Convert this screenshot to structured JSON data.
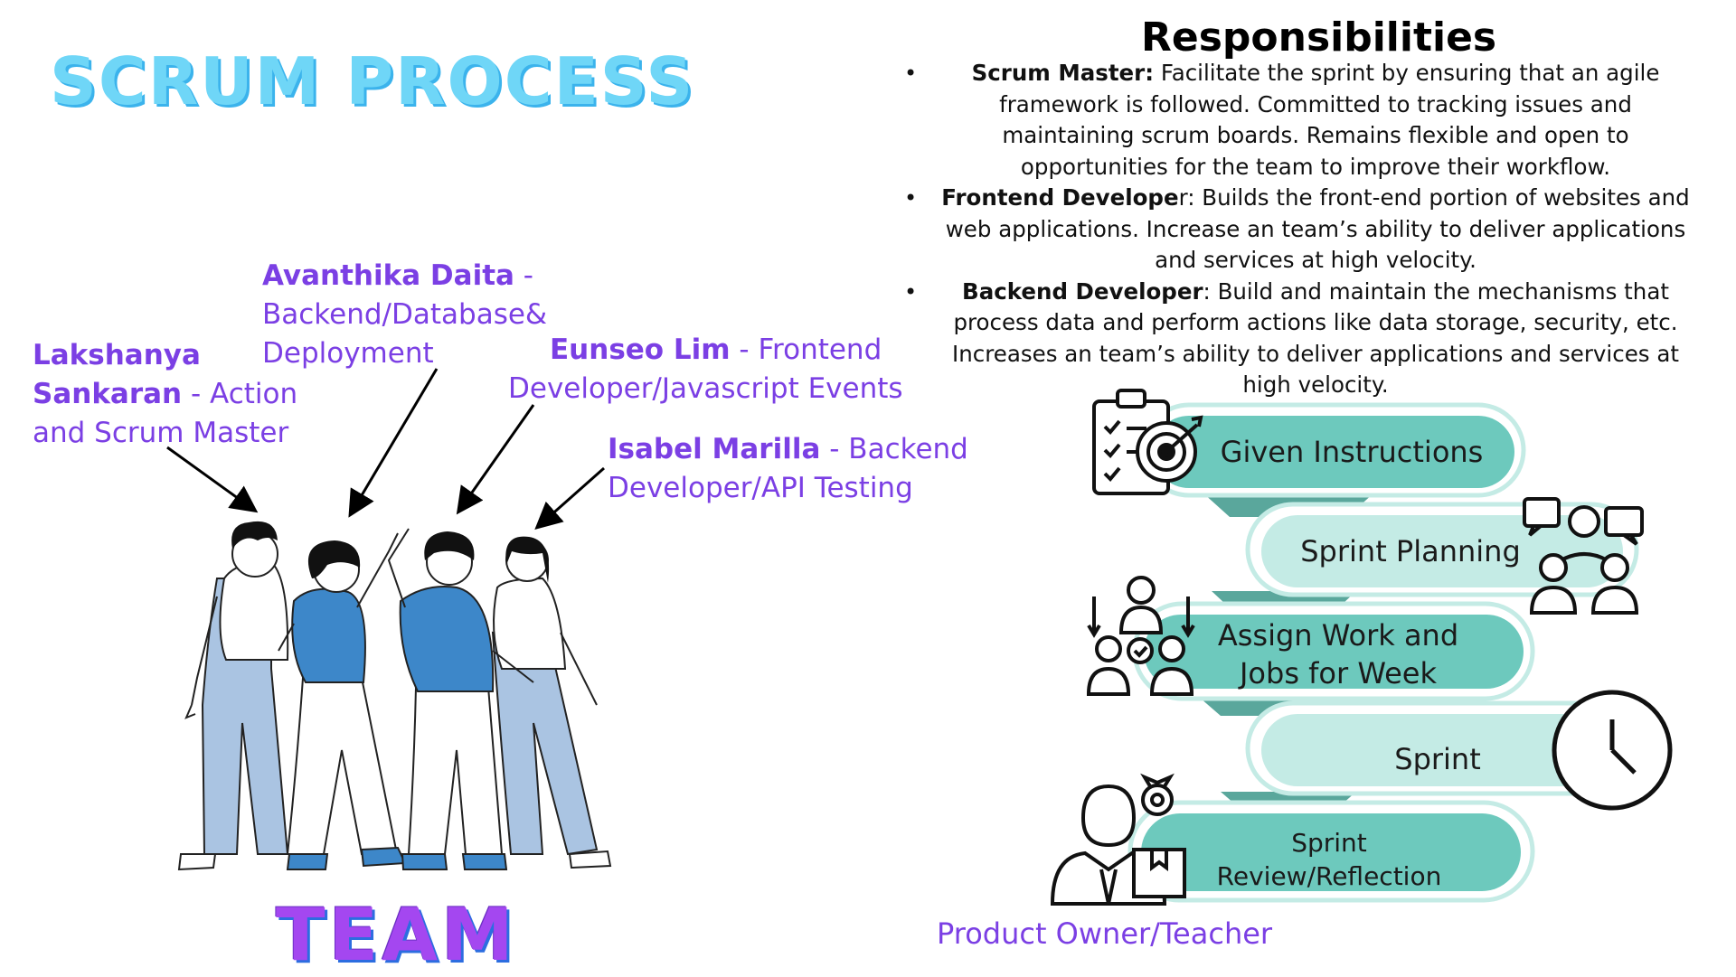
{
  "title": "SCRUM PROCESS",
  "team_label": "TEAM",
  "members": [
    {
      "name_line1": "Lakshanya",
      "name_line2": "Sankaran",
      "role_line2": " - Action",
      "role_line3": "and Scrum Master"
    },
    {
      "name": "Avanthika Daita",
      "sep": " -",
      "role_line2": "Backend/Database&",
      "role_line3": "Deployment"
    },
    {
      "name": "Eunseo Lim",
      "role_line1": " - Frontend",
      "role_line2": "Developer/Javascript Events"
    },
    {
      "name": "Isabel Marilla",
      "role_line1": " - Backend",
      "role_line2": "Developer/API Testing"
    }
  ],
  "responsibilities": {
    "title": "Responsibilities",
    "items": [
      {
        "role": "Scrum Master:",
        "text": "  Facilitate the sprint by ensuring that an agile framework is followed. Committed to tracking issues and maintaining scrum boards. Remains flexible and open to opportunities for the team to improve their workflow."
      },
      {
        "role": "Frontend Develope",
        "text": "r: Builds the front-end portion of websites and web applications. Increase an team’s ability to deliver applications and services at high velocity."
      },
      {
        "role": "Backend Developer",
        "text": ": Build and maintain the mechanisms that process data and perform actions like data storage, security, etc.  Increases an team’s ability to deliver applications and services at high velocity."
      }
    ]
  },
  "stages": [
    {
      "line1": "Given Instructions"
    },
    {
      "line1": "Sprint Planning"
    },
    {
      "line1": "Assign Work and",
      "line2": "Jobs for Week"
    },
    {
      "line1": "Sprint"
    },
    {
      "line1": "Sprint",
      "line2": "Review/Reflection"
    }
  ],
  "product_owner": "Product Owner/Teacher",
  "colors": {
    "title": "#6fd6f7",
    "member_text": "#7b3fe4",
    "stage_dark": "#6dc9bd",
    "stage_light": "#c4ebe5",
    "connector": "#5aa79c",
    "shirt_blue": "#3d87c9",
    "pants_light": "#aac4e2"
  },
  "icons": [
    "clipboard-target-icon",
    "team-meeting-icon",
    "workflow-people-icon",
    "clock-icon",
    "manager-gear-icon"
  ]
}
